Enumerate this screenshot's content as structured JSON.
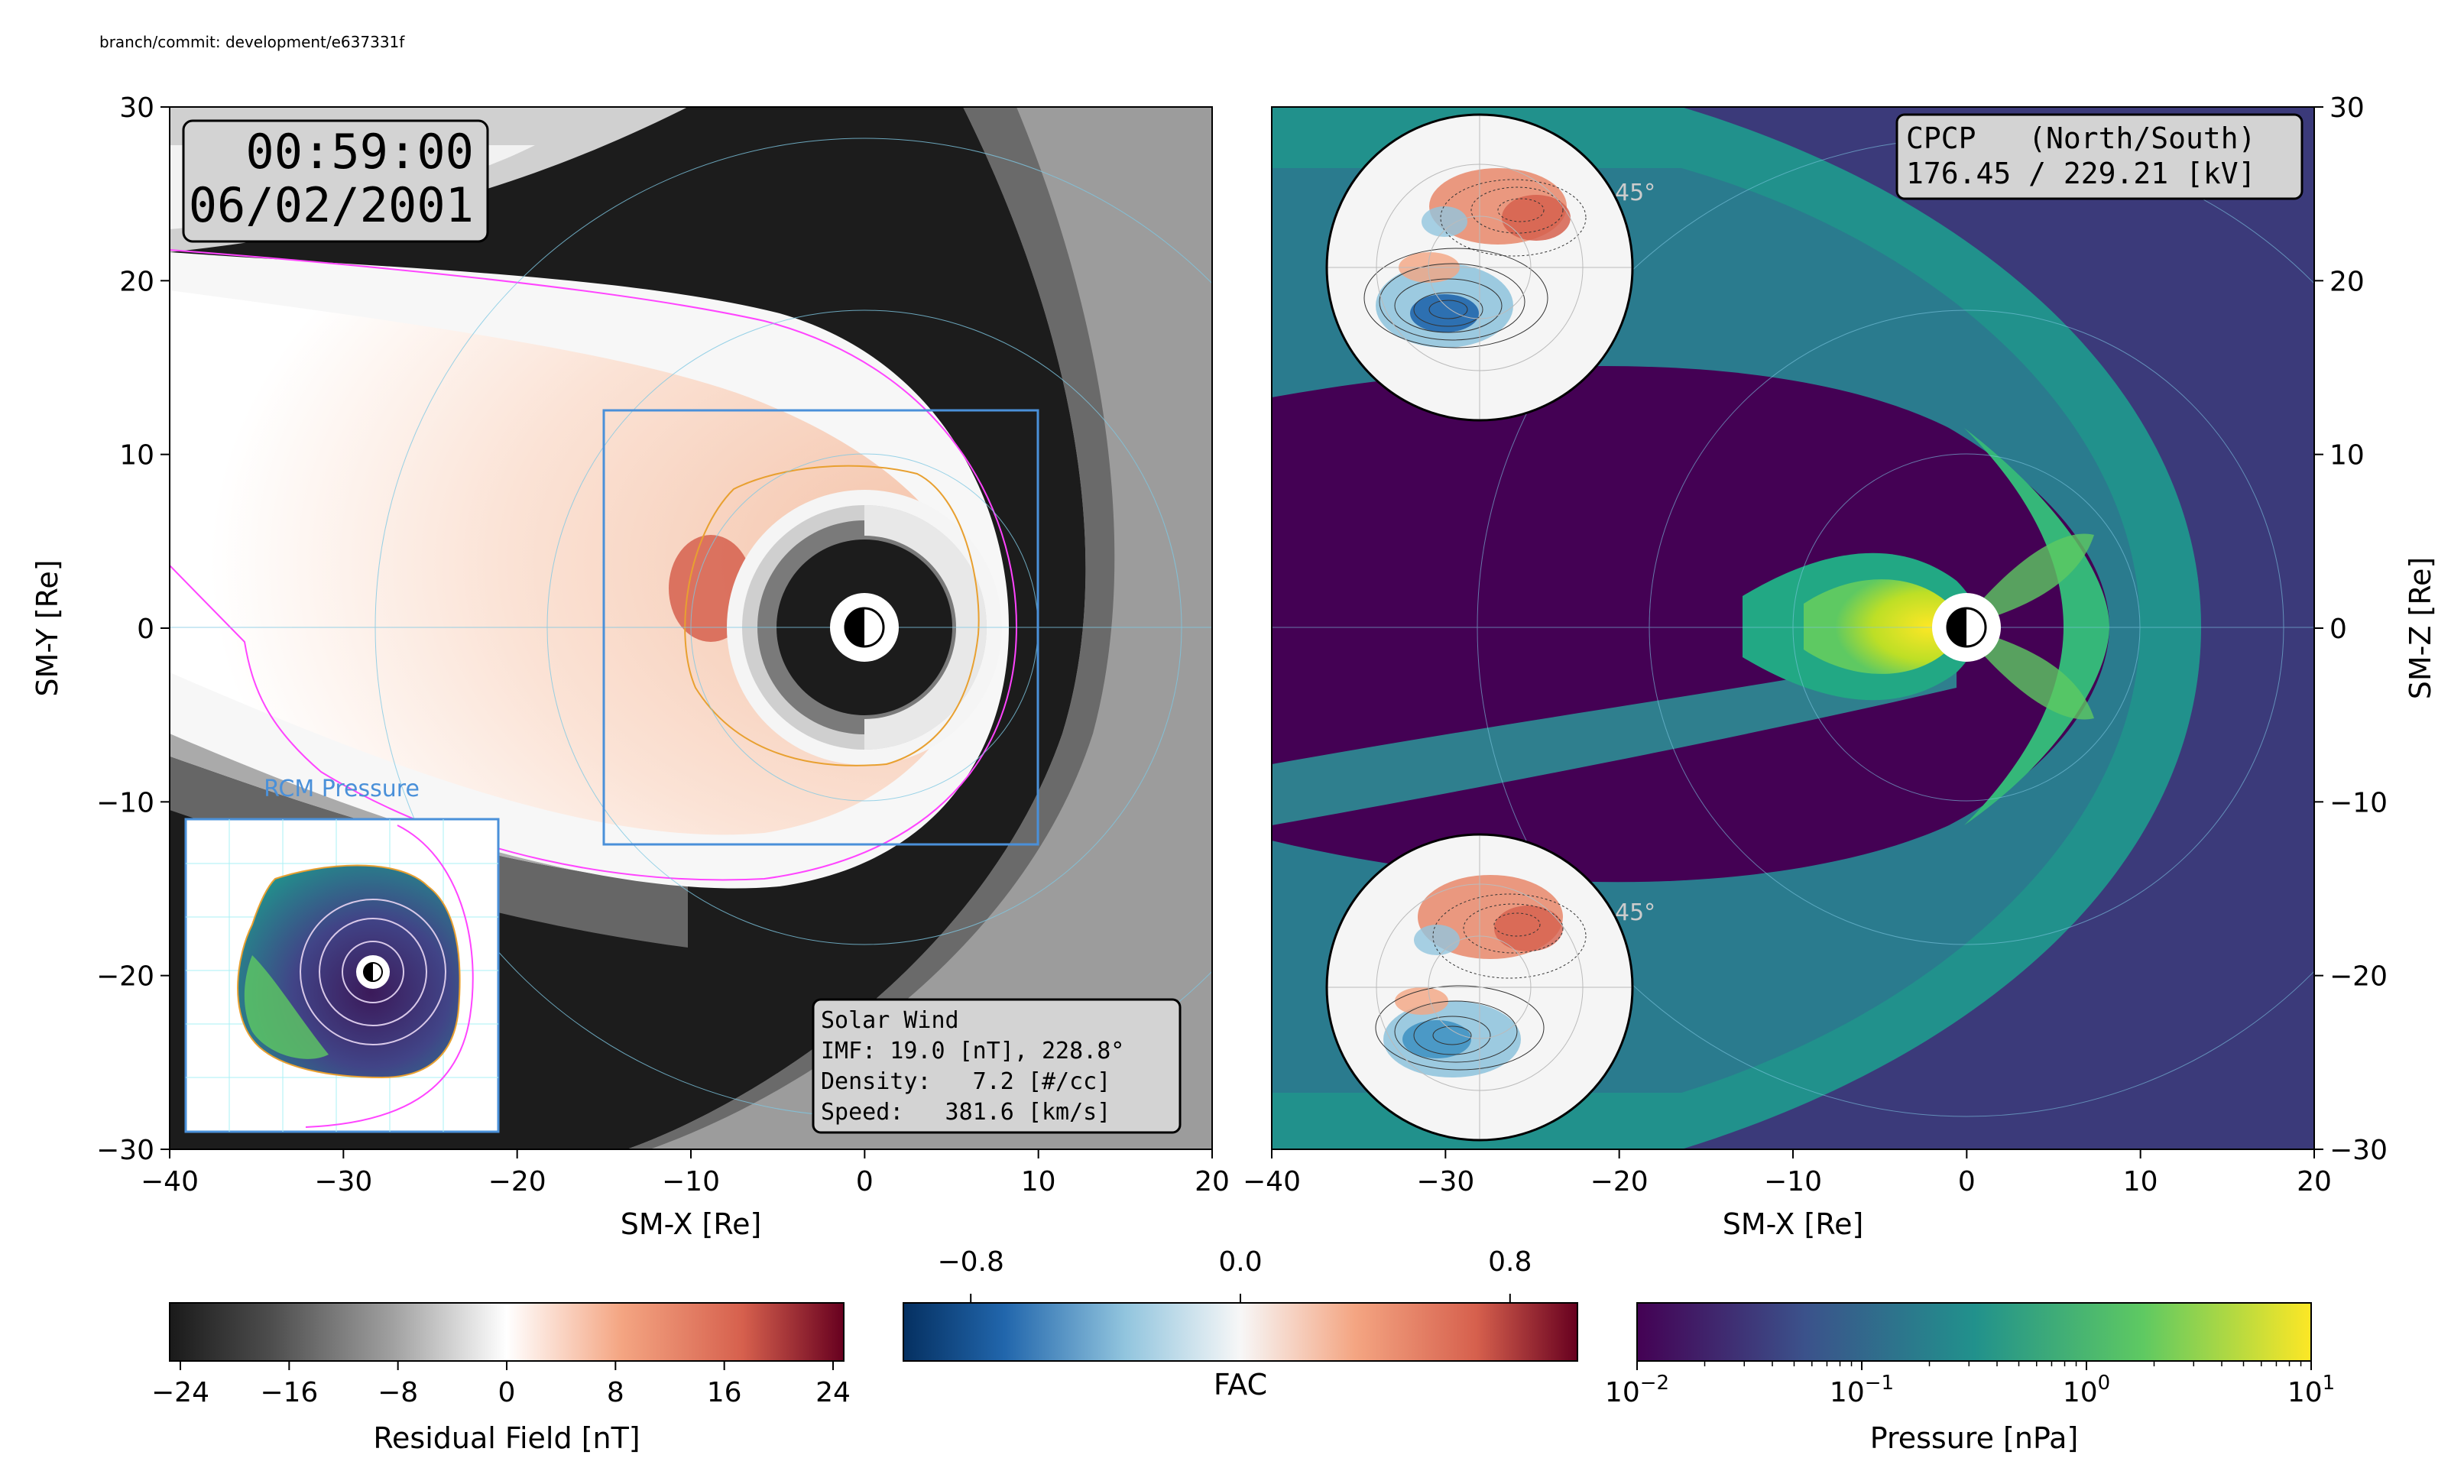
{
  "header": {
    "commit_label": "branch/commit: development/e637331f"
  },
  "left_panel": {
    "time": "00:59:00",
    "date": "06/02/2001",
    "xlabel": "SM-X [Re]",
    "ylabel": "SM-Y [Re]",
    "xlim": [
      -40,
      20
    ],
    "ylim": [
      -30,
      30
    ],
    "xticks": [
      -40,
      -30,
      -20,
      -10,
      0,
      10,
      20
    ],
    "yticks": [
      30,
      20,
      10,
      0,
      -10,
      -20,
      -30
    ],
    "inset_title": "RCM Pressure",
    "zoom_box": {
      "x": [
        -15,
        10
      ],
      "y": [
        -12.5,
        12.5
      ]
    },
    "solar_wind": {
      "title": "Solar Wind",
      "imf": "IMF: 19.0 [nT], 228.8°",
      "density": "Density:   7.2 [#/cc]",
      "speed": "Speed:   381.6 [km/s]"
    }
  },
  "right_panel": {
    "xlabel": "SM-X [Re]",
    "ylabel": "SM-Z [Re]",
    "xlim": [
      -40,
      20
    ],
    "ylim": [
      -30,
      30
    ],
    "xticks": [
      -40,
      -30,
      -20,
      -10,
      0,
      10,
      20
    ],
    "yticks": [
      30,
      20,
      10,
      0,
      -10,
      -20,
      -30
    ],
    "cpcp_header": "CPCP   (North/South)",
    "cpcp_values": "176.45 / 229.21 [kV]",
    "north_lat_label": "45°",
    "south_lat_label": "45°"
  },
  "colorbars": {
    "residual": {
      "label": "Residual Field [nT]",
      "ticks": [
        "−24",
        "−16",
        "−8",
        "0",
        "8",
        "16",
        "24"
      ],
      "range": [
        -24,
        24
      ]
    },
    "fac": {
      "label": "FAC",
      "ticks": [
        "−0.8",
        "0.0",
        "0.8"
      ],
      "range": [
        -1.0,
        1.0
      ]
    },
    "pressure": {
      "label": "Pressure [nPa]",
      "tick_bases": [
        "10",
        "10",
        "10",
        "10"
      ],
      "tick_exps": [
        "−2",
        "−1",
        "0",
        "1"
      ],
      "range": [
        0.01,
        10
      ],
      "scale": "log"
    }
  },
  "chart_data": [
    {
      "type": "heatmap",
      "title": "",
      "xlabel": "SM-X [Re]",
      "ylabel": "SM-Y [Re]",
      "xlim": [
        -40,
        20
      ],
      "ylim": [
        -30,
        30
      ],
      "quantity": "Residual Field [nT]",
      "colormap": "RdGy_r",
      "value_range": [
        -24,
        24
      ]
    },
    {
      "type": "heatmap",
      "title": "",
      "xlabel": "SM-X [Re]",
      "ylabel": "SM-Z [Re]",
      "xlim": [
        -40,
        20
      ],
      "ylim": [
        -30,
        30
      ],
      "quantity": "Pressure [nPa]",
      "colormap": "viridis",
      "scale": "log",
      "value_range": [
        0.01,
        10
      ]
    }
  ],
  "colors": {
    "zoom_box": "#4a90d9",
    "magnetopause": "#ff44ff",
    "rcm_contour": "#e8a030",
    "grid": "#7ec8e3"
  }
}
